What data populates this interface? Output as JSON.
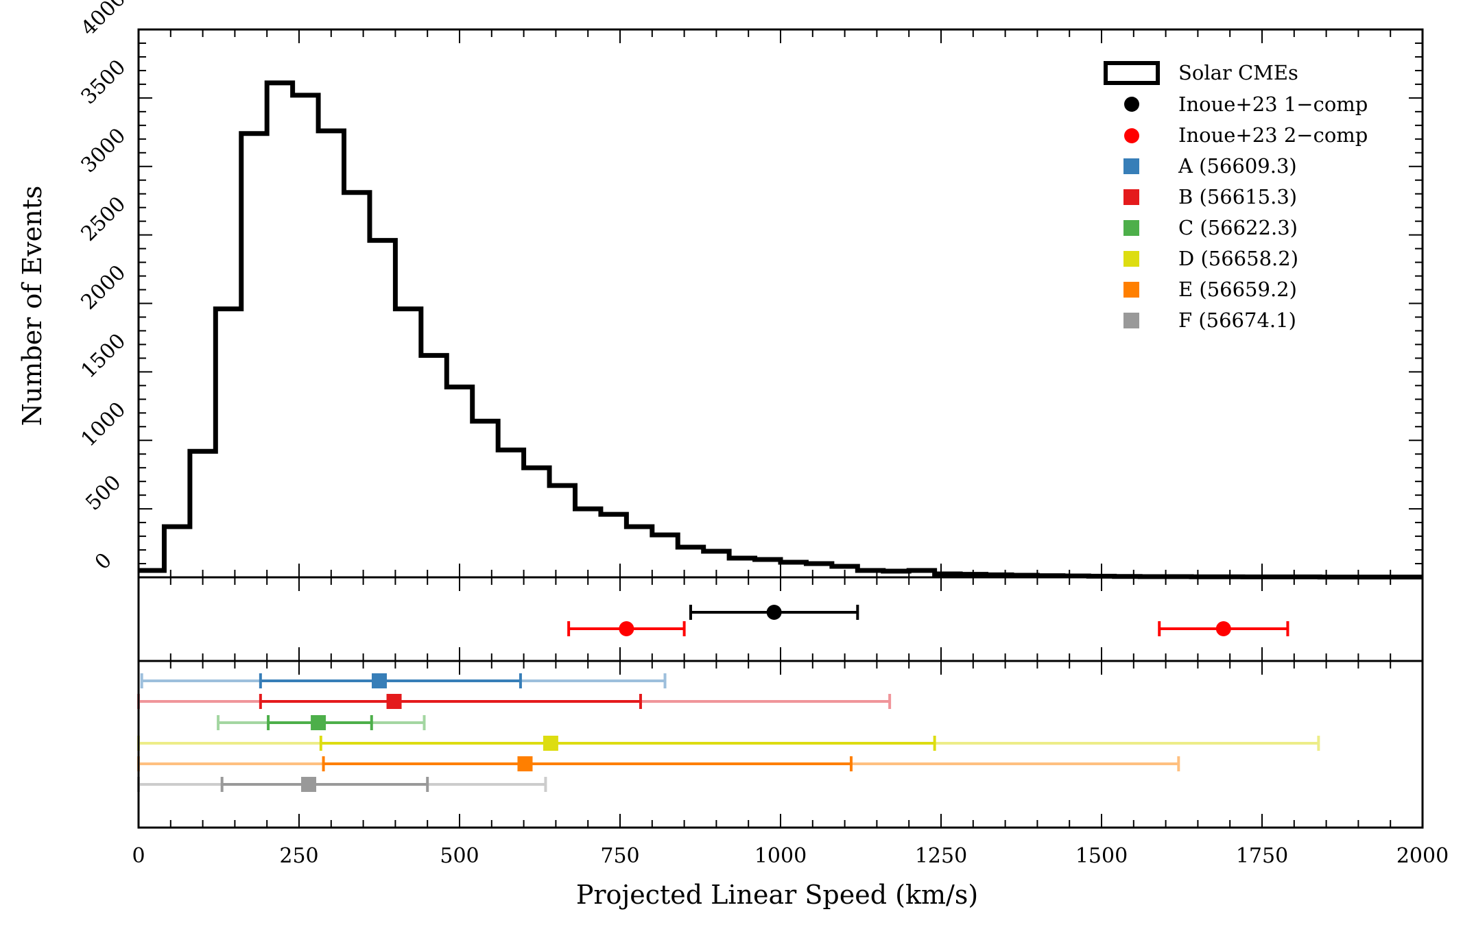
{
  "chart_data": {
    "type": "histogram",
    "xlabel": "Projected Linear Speed (km/s)",
    "ylabel": "Number of Events",
    "xlim": [
      0,
      2000
    ],
    "ylim": [
      0,
      4000
    ],
    "x_ticks": [
      0,
      250,
      500,
      750,
      1000,
      1250,
      1500,
      1750,
      2000
    ],
    "y_ticks": [
      0,
      500,
      1000,
      1500,
      2000,
      2500,
      3000,
      3500,
      4000
    ],
    "histogram": {
      "name": "Solar CMEs",
      "color": "#000000",
      "bin_edges": [
        0,
        40,
        80,
        120,
        160,
        200,
        240,
        280,
        320,
        360,
        400,
        440,
        480,
        520,
        560,
        600,
        640,
        680,
        720,
        760,
        800,
        840,
        880,
        920,
        960,
        1000,
        1040,
        1080,
        1120,
        1160,
        1200,
        1240,
        1280,
        1320,
        1360,
        1400,
        1440,
        1480,
        1520,
        1560,
        1600,
        1640,
        1680,
        1720,
        1760,
        1800,
        1840,
        1880,
        1920,
        1960,
        2000
      ],
      "counts": [
        50,
        370,
        920,
        1960,
        3240,
        3610,
        3520,
        3260,
        2810,
        2460,
        1960,
        1620,
        1390,
        1140,
        930,
        800,
        670,
        500,
        460,
        370,
        310,
        220,
        190,
        140,
        130,
        110,
        100,
        80,
        50,
        45,
        50,
        25,
        22,
        18,
        15,
        12,
        10,
        8,
        6,
        5,
        5,
        4,
        4,
        3,
        3,
        3,
        2,
        2,
        2,
        2
      ]
    },
    "inoue23": [
      {
        "name": "Inoue+23 1−comp",
        "color": "#000000",
        "value": 990,
        "lo": 860,
        "hi": 1120,
        "row": 0
      },
      {
        "name": "Inoue+23 2−comp",
        "color": "#ff0000",
        "value": 760,
        "lo": 670,
        "hi": 850,
        "row": 1
      },
      {
        "name": "",
        "color": "#ff0000",
        "value": 1690,
        "lo": 1590,
        "hi": 1790,
        "row": 1
      }
    ],
    "epochs": [
      {
        "name": "A (56609.3)",
        "color": "#377eb8",
        "light": "#9dbfdc",
        "value": 375,
        "lo1": 190,
        "hi1": 595,
        "lo2": 5,
        "hi2": 820
      },
      {
        "name": "B (56615.3)",
        "color": "#e41a1c",
        "light": "#f0959a",
        "value": 398,
        "lo1": 190,
        "hi1": 782,
        "lo2": 0,
        "hi2": 1170
      },
      {
        "name": "C (56622.3)",
        "color": "#4daf4a",
        "light": "#a3d6a1",
        "value": 280,
        "lo1": 202,
        "hi1": 363,
        "lo2": 124,
        "hi2": 445
      },
      {
        "name": "D (56658.2)",
        "color": "#dddd11",
        "light": "#eded88",
        "value": 642,
        "lo1": 284,
        "hi1": 1240,
        "lo2": 0,
        "hi2": 1838
      },
      {
        "name": "E (56659.2)",
        "color": "#ff7f00",
        "light": "#ffc080",
        "value": 602,
        "lo1": 288,
        "hi1": 1110,
        "lo2": 0,
        "hi2": 1620
      },
      {
        "name": "F (56674.1)",
        "color": "#999999",
        "light": "#cccccc",
        "value": 265,
        "lo1": 130,
        "hi1": 450,
        "lo2": 0,
        "hi2": 634
      }
    ],
    "legend_position": "top-right"
  }
}
